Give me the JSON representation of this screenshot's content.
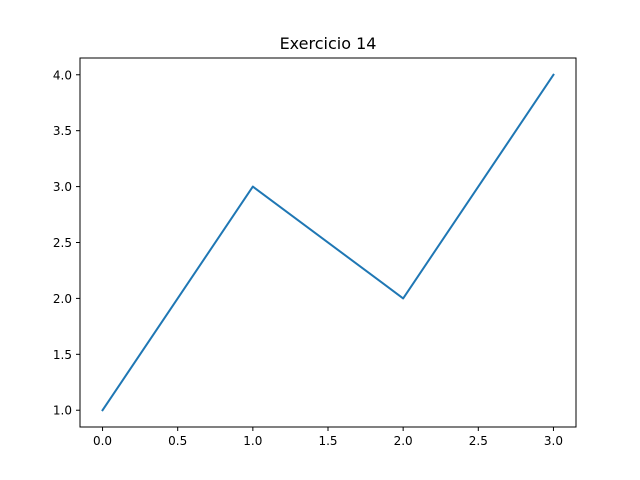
{
  "chart_data": {
    "type": "line",
    "title": "Exercicio 14",
    "xlabel": "",
    "ylabel": "",
    "x": [
      0,
      1,
      2,
      3
    ],
    "series": [
      {
        "values": [
          1,
          3,
          2,
          4
        ],
        "color": "#1f77b4"
      }
    ],
    "xlim": [
      -0.15,
      3.15
    ],
    "ylim": [
      0.85,
      4.15
    ],
    "xticks": [
      0.0,
      0.5,
      1.0,
      1.5,
      2.0,
      2.5,
      3.0
    ],
    "xtick_labels": [
      "0.0",
      "0.5",
      "1.0",
      "1.5",
      "2.0",
      "2.5",
      "3.0"
    ],
    "yticks": [
      1.0,
      1.5,
      2.0,
      2.5,
      3.0,
      3.5,
      4.0
    ],
    "ytick_labels": [
      "1.0",
      "1.5",
      "2.0",
      "2.5",
      "3.0",
      "3.5",
      "4.0"
    ],
    "grid": false,
    "legend": "none"
  }
}
